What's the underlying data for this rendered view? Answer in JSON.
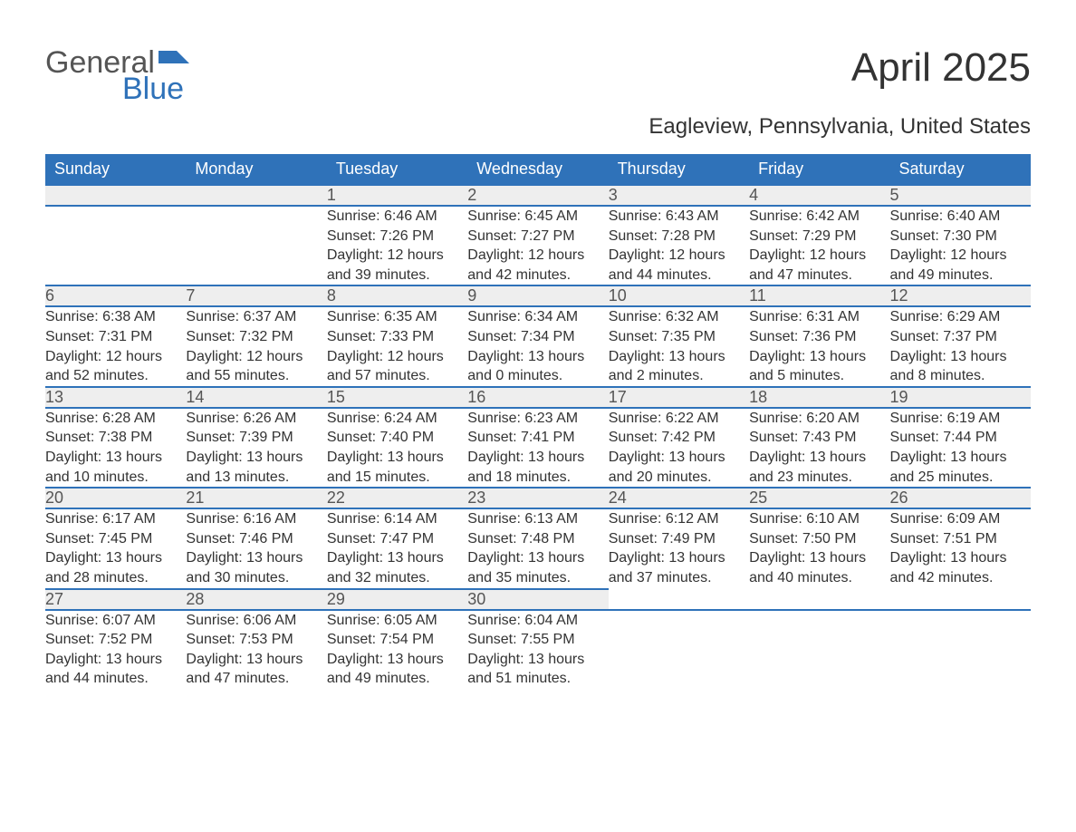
{
  "logo": {
    "line1": "General",
    "line2": "Blue"
  },
  "title": "April 2025",
  "subtitle": "Eagleview, Pennsylvania, United States",
  "colors": {
    "header_bg": "#2f72b9",
    "header_text": "#ffffff",
    "daynum_bg": "#eeeeee",
    "rule": "#2f72b9",
    "body_text": "#333333",
    "logo_blue": "#2f72b9",
    "logo_gray": "#555555",
    "page_bg": "#ffffff"
  },
  "typography": {
    "title_fontsize": 44,
    "subtitle_fontsize": 24,
    "header_fontsize": 18,
    "daynum_fontsize": 18,
    "cell_fontsize": 16,
    "font_family": "Segoe UI"
  },
  "weekdays": [
    "Sunday",
    "Monday",
    "Tuesday",
    "Wednesday",
    "Thursday",
    "Friday",
    "Saturday"
  ],
  "weeks": [
    [
      null,
      null,
      {
        "n": "1",
        "sunrise": "6:46 AM",
        "sunset": "7:26 PM",
        "daylight": "12 hours and 39 minutes."
      },
      {
        "n": "2",
        "sunrise": "6:45 AM",
        "sunset": "7:27 PM",
        "daylight": "12 hours and 42 minutes."
      },
      {
        "n": "3",
        "sunrise": "6:43 AM",
        "sunset": "7:28 PM",
        "daylight": "12 hours and 44 minutes."
      },
      {
        "n": "4",
        "sunrise": "6:42 AM",
        "sunset": "7:29 PM",
        "daylight": "12 hours and 47 minutes."
      },
      {
        "n": "5",
        "sunrise": "6:40 AM",
        "sunset": "7:30 PM",
        "daylight": "12 hours and 49 minutes."
      }
    ],
    [
      {
        "n": "6",
        "sunrise": "6:38 AM",
        "sunset": "7:31 PM",
        "daylight": "12 hours and 52 minutes."
      },
      {
        "n": "7",
        "sunrise": "6:37 AM",
        "sunset": "7:32 PM",
        "daylight": "12 hours and 55 minutes."
      },
      {
        "n": "8",
        "sunrise": "6:35 AM",
        "sunset": "7:33 PM",
        "daylight": "12 hours and 57 minutes."
      },
      {
        "n": "9",
        "sunrise": "6:34 AM",
        "sunset": "7:34 PM",
        "daylight": "13 hours and 0 minutes."
      },
      {
        "n": "10",
        "sunrise": "6:32 AM",
        "sunset": "7:35 PM",
        "daylight": "13 hours and 2 minutes."
      },
      {
        "n": "11",
        "sunrise": "6:31 AM",
        "sunset": "7:36 PM",
        "daylight": "13 hours and 5 minutes."
      },
      {
        "n": "12",
        "sunrise": "6:29 AM",
        "sunset": "7:37 PM",
        "daylight": "13 hours and 8 minutes."
      }
    ],
    [
      {
        "n": "13",
        "sunrise": "6:28 AM",
        "sunset": "7:38 PM",
        "daylight": "13 hours and 10 minutes."
      },
      {
        "n": "14",
        "sunrise": "6:26 AM",
        "sunset": "7:39 PM",
        "daylight": "13 hours and 13 minutes."
      },
      {
        "n": "15",
        "sunrise": "6:24 AM",
        "sunset": "7:40 PM",
        "daylight": "13 hours and 15 minutes."
      },
      {
        "n": "16",
        "sunrise": "6:23 AM",
        "sunset": "7:41 PM",
        "daylight": "13 hours and 18 minutes."
      },
      {
        "n": "17",
        "sunrise": "6:22 AM",
        "sunset": "7:42 PM",
        "daylight": "13 hours and 20 minutes."
      },
      {
        "n": "18",
        "sunrise": "6:20 AM",
        "sunset": "7:43 PM",
        "daylight": "13 hours and 23 minutes."
      },
      {
        "n": "19",
        "sunrise": "6:19 AM",
        "sunset": "7:44 PM",
        "daylight": "13 hours and 25 minutes."
      }
    ],
    [
      {
        "n": "20",
        "sunrise": "6:17 AM",
        "sunset": "7:45 PM",
        "daylight": "13 hours and 28 minutes."
      },
      {
        "n": "21",
        "sunrise": "6:16 AM",
        "sunset": "7:46 PM",
        "daylight": "13 hours and 30 minutes."
      },
      {
        "n": "22",
        "sunrise": "6:14 AM",
        "sunset": "7:47 PM",
        "daylight": "13 hours and 32 minutes."
      },
      {
        "n": "23",
        "sunrise": "6:13 AM",
        "sunset": "7:48 PM",
        "daylight": "13 hours and 35 minutes."
      },
      {
        "n": "24",
        "sunrise": "6:12 AM",
        "sunset": "7:49 PM",
        "daylight": "13 hours and 37 minutes."
      },
      {
        "n": "25",
        "sunrise": "6:10 AM",
        "sunset": "7:50 PM",
        "daylight": "13 hours and 40 minutes."
      },
      {
        "n": "26",
        "sunrise": "6:09 AM",
        "sunset": "7:51 PM",
        "daylight": "13 hours and 42 minutes."
      }
    ],
    [
      {
        "n": "27",
        "sunrise": "6:07 AM",
        "sunset": "7:52 PM",
        "daylight": "13 hours and 44 minutes."
      },
      {
        "n": "28",
        "sunrise": "6:06 AM",
        "sunset": "7:53 PM",
        "daylight": "13 hours and 47 minutes."
      },
      {
        "n": "29",
        "sunrise": "6:05 AM",
        "sunset": "7:54 PM",
        "daylight": "13 hours and 49 minutes."
      },
      {
        "n": "30",
        "sunrise": "6:04 AM",
        "sunset": "7:55 PM",
        "daylight": "13 hours and 51 minutes."
      },
      null,
      null,
      null
    ]
  ],
  "labels": {
    "sunrise": "Sunrise: ",
    "sunset": "Sunset: ",
    "daylight": "Daylight: "
  }
}
